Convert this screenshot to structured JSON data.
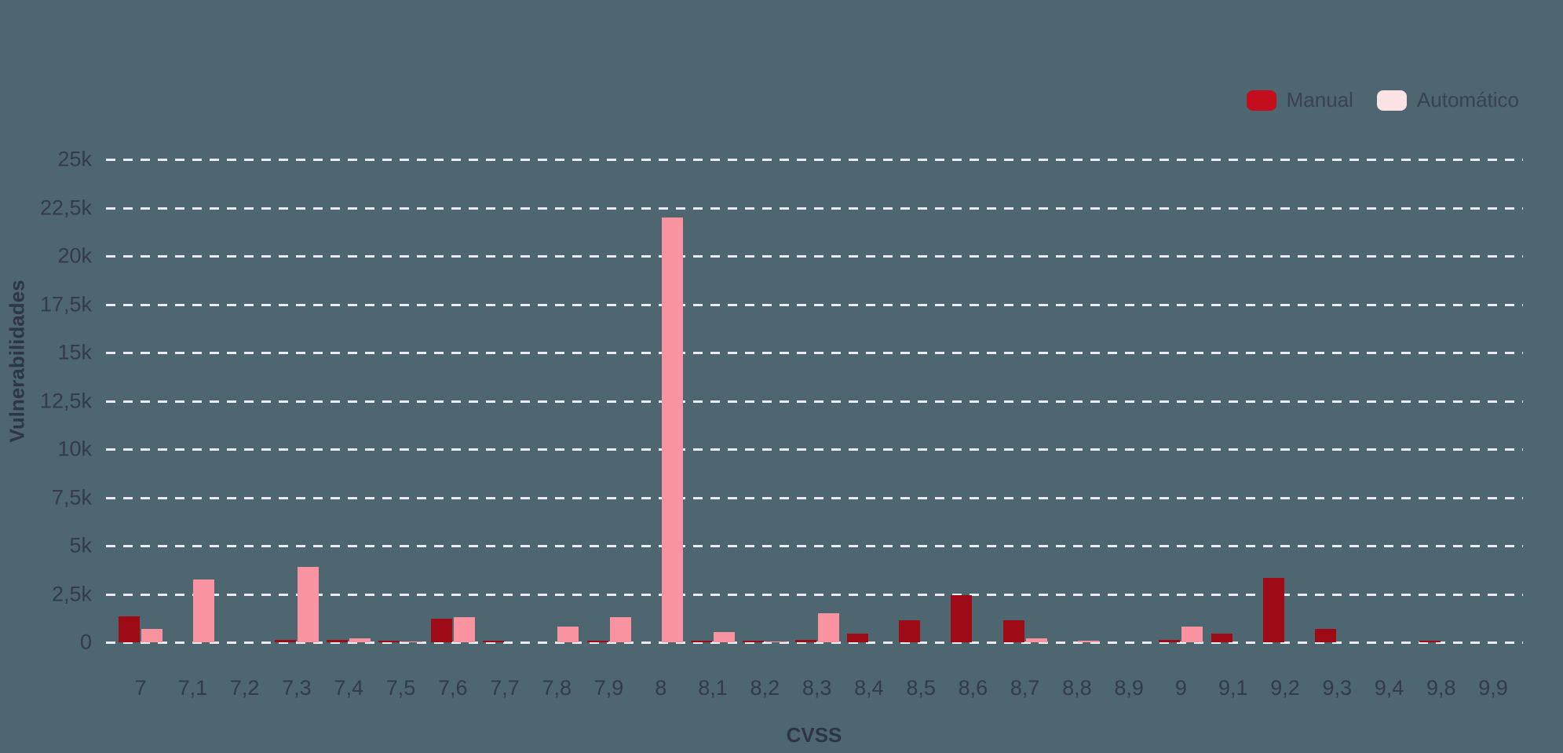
{
  "colors": {
    "background": "#4d6670",
    "gridline": "#e9ecf2",
    "tick_text": "#333b49",
    "axis_title_text": "#2e3645",
    "legend_text": "#3a4150"
  },
  "chart_data": {
    "type": "bar",
    "title": "",
    "xlabel": "CVSS",
    "ylabel": "Vulnerabilidades",
    "grid": "horizontal-dashed",
    "legend_position": "top-right",
    "ylim": [
      0,
      25000
    ],
    "categories": [
      "7",
      "7,1",
      "7,2",
      "7,3",
      "7,4",
      "7,5",
      "7,6",
      "7,7",
      "7,8",
      "7,9",
      "8",
      "8,1",
      "8,2",
      "8,3",
      "8,4",
      "8,5",
      "8,6",
      "8,7",
      "8,8",
      "8,9",
      "9",
      "9,1",
      "9,2",
      "9,3",
      "9,4",
      "9,8",
      "9,9"
    ],
    "series": [
      {
        "name": "Manual",
        "color": "#9e0b17",
        "legend_color": "#c40d1e",
        "values": [
          1350,
          0,
          0,
          120,
          130,
          100,
          1200,
          100,
          0,
          100,
          0,
          100,
          100,
          120,
          430,
          1150,
          2450,
          1150,
          0,
          0,
          120,
          440,
          3350,
          700,
          0,
          80,
          0
        ]
      },
      {
        "name": "Automático",
        "color": "#f9939f",
        "legend_color": "#fbe2e5",
        "values": [
          700,
          3250,
          0,
          3900,
          200,
          60,
          1300,
          0,
          800,
          1300,
          22000,
          530,
          60,
          1500,
          0,
          0,
          0,
          220,
          70,
          0,
          800,
          0,
          0,
          0,
          0,
          0,
          0
        ]
      }
    ],
    "y_ticks": [
      {
        "label": "0",
        "value": 0
      },
      {
        "label": "2,5k",
        "value": 2500
      },
      {
        "label": "5k",
        "value": 5000
      },
      {
        "label": "7,5k",
        "value": 7500
      },
      {
        "label": "10k",
        "value": 10000
      },
      {
        "label": "12,5k",
        "value": 12500
      },
      {
        "label": "15k",
        "value": 15000
      },
      {
        "label": "17,5k",
        "value": 17500
      },
      {
        "label": "20k",
        "value": 20000
      },
      {
        "label": "22,5k",
        "value": 22500
      },
      {
        "label": "25k",
        "value": 25000
      }
    ]
  }
}
